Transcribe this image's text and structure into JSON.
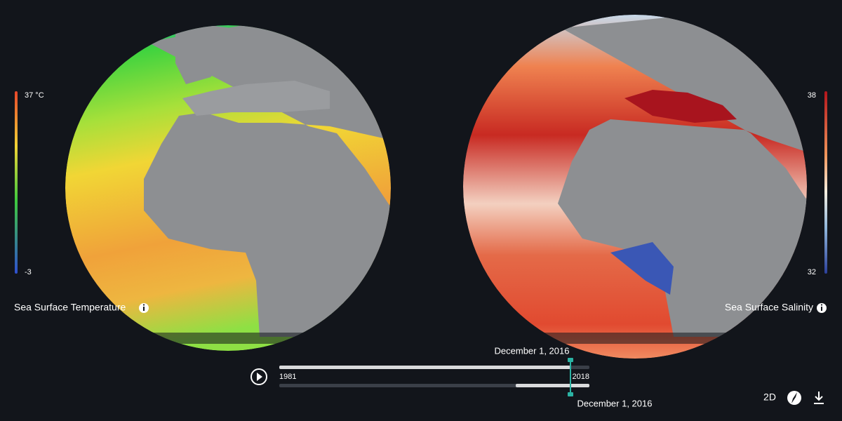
{
  "left_panel": {
    "title": "Sea Surface Temperature",
    "legend_max": "37 °C",
    "legend_min": "-3"
  },
  "right_panel": {
    "title": "Sea Surface Salinity",
    "legend_max": "38",
    "legend_min": "32"
  },
  "timeline": {
    "top_date": "December 1, 2016",
    "bottom_date": "December 1, 2016",
    "start_year": "1981",
    "end_year": "2018"
  },
  "controls": {
    "view_toggle": "2D"
  }
}
